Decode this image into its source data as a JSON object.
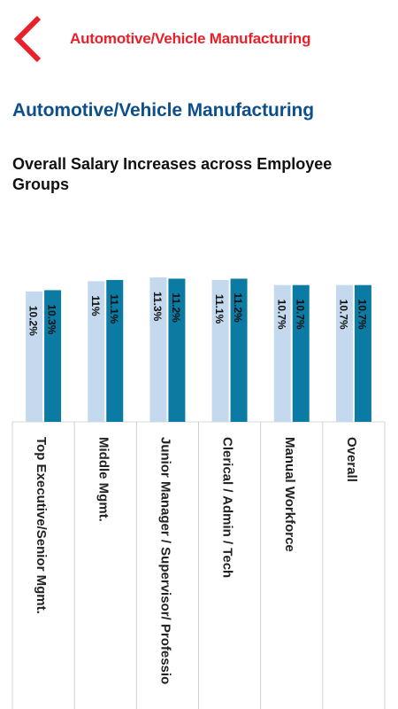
{
  "header": {
    "title": "Automotive/Vehicle Manufacturing"
  },
  "page": {
    "title": "Automotive/Vehicle Manufacturing"
  },
  "chart_data": {
    "type": "bar",
    "title": "Overall Salary Increases across Employee Groups",
    "categories": [
      "Top Executive/Senior Mgmt.",
      "Middle Mgmt.",
      "Junior Manager / Supervisor/ Professio",
      "Clerical / Admin / Tech",
      "Manual Workforce",
      "Overall"
    ],
    "series": [
      {
        "values": [
          10.2,
          11,
          11.3,
          11.1,
          10.7,
          10.7
        ],
        "labels": [
          "10.2%",
          "11%",
          "11.3%",
          "11.1%",
          "10.7%",
          "10.7%"
        ],
        "color": "#c5d9ee"
      },
      {
        "values": [
          10.3,
          11.1,
          11.2,
          11.2,
          10.7,
          10.7
        ],
        "labels": [
          "10.3%",
          "11.1%",
          "11.2%",
          "11.2%",
          "10.7%",
          "10.7%"
        ],
        "color": "#0b7ba3"
      }
    ],
    "grid": false,
    "legend": "none"
  },
  "colors": {
    "accent": "#e8202a",
    "title": "#0d4f8b"
  }
}
